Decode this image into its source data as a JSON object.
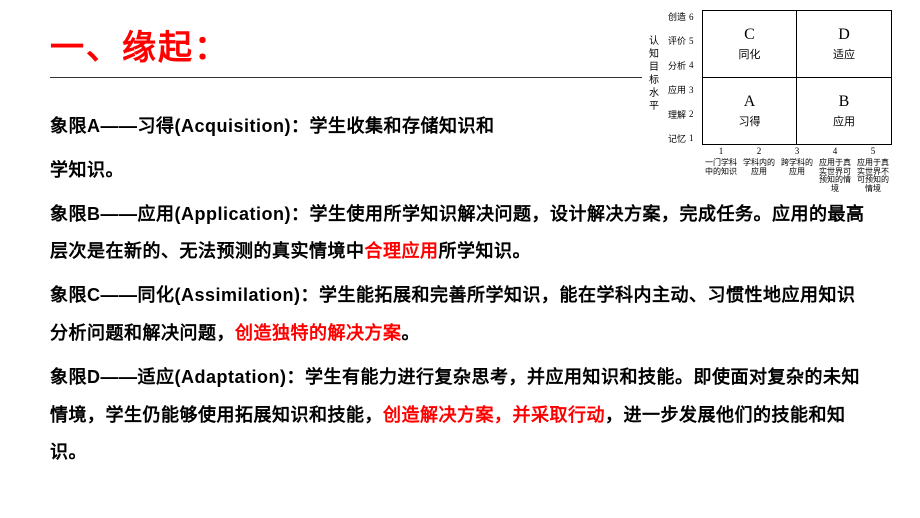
{
  "title": "一、缘起：",
  "paragraphs": {
    "a": {
      "prefix": "象限A——习得(Acquisition)：学生收集和存储知识和",
      "line2": "学知识。"
    },
    "b": {
      "prefix": "象限B——应用(Application)：学生使用所学知识解决问题，设计解决方案，完成任务。应用的最高层次是在新的、无法预测的真实情境中",
      "hl": "合理应用",
      "suffix": "所学知识。"
    },
    "c": {
      "prefix": "象限C——同化(Assimilation)：学生能拓展和完善所学知识，能在学科内主动、习惯性地应用知识分析问题和解决问题，",
      "hl": "创造独特的解决方案",
      "suffix": "。"
    },
    "d": {
      "prefix": "象限D——适应(Adaptation)：学生有能力进行复杂思考，并应用知识和技能。即使面对复杂的未知情境，学生仍能够使用拓展知识和技能，",
      "hl": "创造解决方案，并采取行动",
      "suffix": "，进一步发展他们的技能和知识。"
    }
  },
  "chart": {
    "y_axis_title": "认知目标水平",
    "y_ticks": [
      {
        "label": "创造",
        "num": "6"
      },
      {
        "label": "评价",
        "num": "5"
      },
      {
        "label": "分析",
        "num": "4"
      },
      {
        "label": "应用",
        "num": "3"
      },
      {
        "label": "理解",
        "num": "2"
      },
      {
        "label": "记忆",
        "num": "1"
      }
    ],
    "x_ticks": [
      {
        "num": "1",
        "label": "一门学科中的知识"
      },
      {
        "num": "2",
        "label": "学科内的应用"
      },
      {
        "num": "3",
        "label": "跨学科的应用"
      },
      {
        "num": "4",
        "label": "应用于真实世界可预知的情境"
      },
      {
        "num": "5",
        "label": "应用于真实世界不可预知的情境"
      }
    ],
    "quadrants": {
      "tl": {
        "letter": "C",
        "label": "同化"
      },
      "tr": {
        "letter": "D",
        "label": "适应"
      },
      "bl": {
        "letter": "A",
        "label": "习得"
      },
      "br": {
        "letter": "B",
        "label": "应用"
      }
    }
  }
}
